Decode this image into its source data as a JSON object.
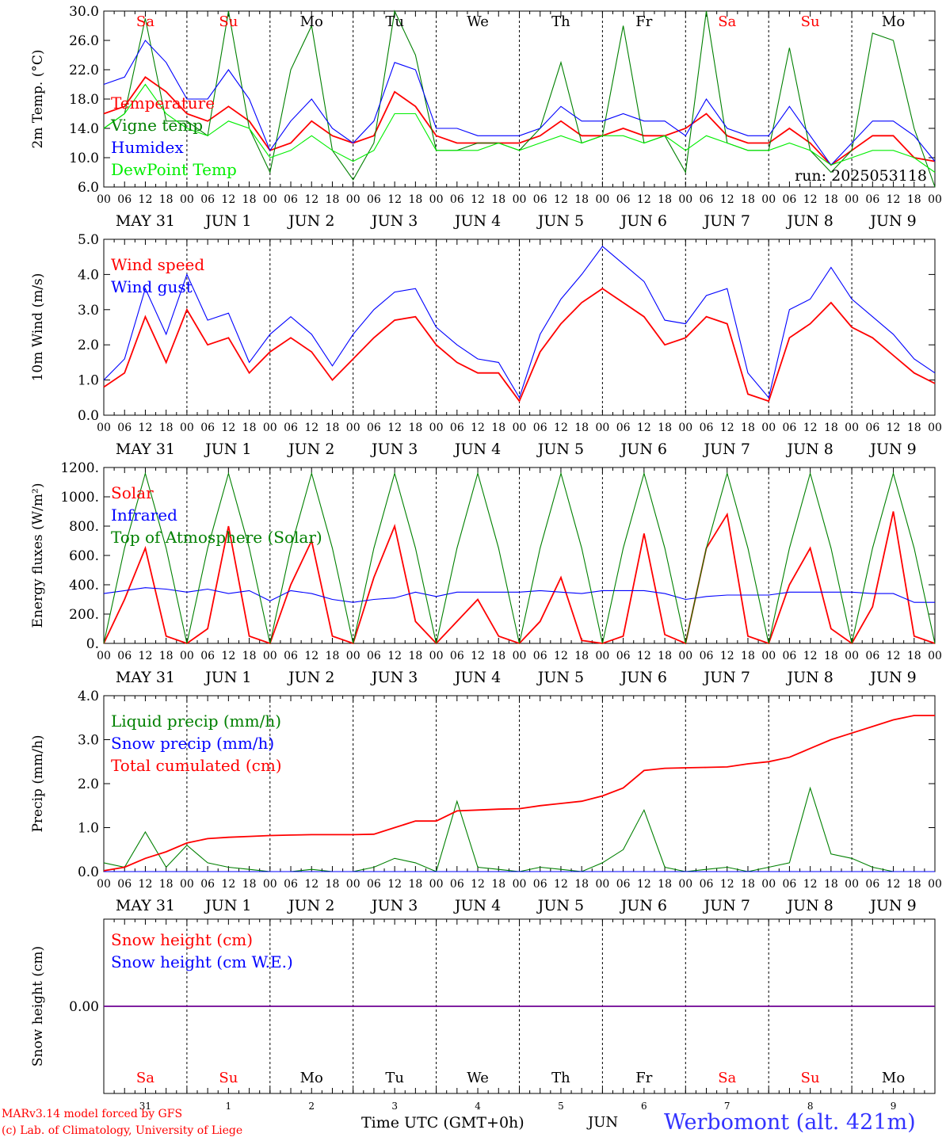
{
  "run_label": "run: 2025053118",
  "footer": {
    "credit_line1": "MARv3.14 model forced by GFS",
    "credit_line2": "(c) Lab. of Climatology, University of Liege",
    "time_axis_label": "Time UTC (GMT+0h)",
    "month_label": "JUN",
    "station": "Werbomont (alt. 421m)"
  },
  "x_axis": {
    "hour_ticks": [
      "00",
      "06",
      "12",
      "18"
    ],
    "day_labels": [
      "MAY 31",
      "JUN  1",
      "JUN  2",
      "JUN  3",
      "JUN  4",
      "JUN  5",
      "JUN  6",
      "JUN  7",
      "JUN  8",
      "JUN  9"
    ],
    "weekdays": [
      "Sa",
      "Su",
      "Mo",
      "Tu",
      "We",
      "Th",
      "Fr",
      "Sa",
      "Su",
      "Mo"
    ],
    "weekend_flags": [
      true,
      true,
      false,
      false,
      false,
      false,
      false,
      true,
      true,
      false
    ],
    "day_numbers": [
      "31",
      "1",
      "2",
      "3",
      "4",
      "5",
      "6",
      "7",
      "8",
      "9"
    ],
    "total_hours": 240
  },
  "colors": {
    "red": "#ff0000",
    "blue": "#0000ff",
    "green": "#008000",
    "lightgreen": "#00ee00",
    "weekend": "#ff0000",
    "weekday": "#000000"
  },
  "chart_data": [
    {
      "type": "line",
      "ylabel": "2m Temp. (°C)",
      "ylim": [
        6,
        30
      ],
      "yticks": [
        "6.0",
        "10.0",
        "14.0",
        "18.0",
        "22.0",
        "26.0",
        "30.0"
      ],
      "yticks_values": [
        6,
        10,
        14,
        18,
        22,
        26,
        30
      ],
      "x": [
        0,
        6,
        12,
        18,
        24,
        30,
        36,
        42,
        48,
        54,
        60,
        66,
        72,
        78,
        84,
        90,
        96,
        102,
        108,
        114,
        120,
        126,
        132,
        138,
        144,
        150,
        156,
        162,
        168,
        174,
        180,
        186,
        192,
        198,
        204,
        210,
        216,
        222,
        228,
        234,
        240
      ],
      "series": [
        {
          "name": "Temperature",
          "color": "red",
          "values": [
            16,
            17,
            21,
            19,
            16,
            15,
            17,
            15,
            11,
            12,
            15,
            13,
            12,
            13,
            19,
            17,
            13,
            12,
            12,
            12,
            12,
            13,
            15,
            13,
            13,
            14,
            13,
            13,
            14,
            16,
            13,
            12,
            12,
            14,
            12,
            9,
            11,
            13,
            13,
            10,
            9.5
          ]
        },
        {
          "name": "Vigne temp",
          "color": "green",
          "values": [
            14,
            16,
            29,
            15,
            15,
            13,
            30,
            14,
            8,
            22,
            28,
            11,
            7,
            12,
            30,
            24,
            11,
            11,
            12,
            12,
            11,
            14,
            23,
            12,
            13,
            28,
            12,
            13,
            8,
            30,
            12,
            11,
            11,
            25,
            11,
            8,
            11,
            27,
            26,
            14,
            6
          ]
        },
        {
          "name": "Humidex",
          "color": "blue",
          "values": [
            20,
            21,
            26,
            23,
            18,
            18,
            22,
            18,
            11,
            15,
            18,
            14,
            12,
            15,
            23,
            22,
            14,
            14,
            13,
            13,
            13,
            14,
            17,
            15,
            15,
            16,
            15,
            15,
            13,
            18,
            14,
            13,
            13,
            17,
            13,
            9,
            12,
            15,
            15,
            13,
            9.5
          ]
        },
        {
          "name": "DewPoint Temp",
          "color": "lightgreen",
          "values": [
            14,
            16,
            20,
            16,
            14,
            13,
            15,
            14,
            10,
            11,
            13,
            11,
            9.5,
            11,
            16,
            16,
            11,
            11,
            11,
            12,
            11,
            12,
            13,
            12,
            13,
            13,
            12,
            13,
            11,
            13,
            12,
            11,
            11,
            12,
            11,
            9,
            10,
            11,
            11,
            10,
            8
          ]
        }
      ]
    },
    {
      "type": "line",
      "ylabel": "10m Wind (m/s)",
      "ylim": [
        0,
        5
      ],
      "yticks": [
        "0.0",
        "1.0",
        "2.0",
        "3.0",
        "4.0",
        "5.0"
      ],
      "yticks_values": [
        0,
        1,
        2,
        3,
        4,
        5
      ],
      "x": [
        0,
        6,
        12,
        18,
        24,
        30,
        36,
        42,
        48,
        54,
        60,
        66,
        72,
        78,
        84,
        90,
        96,
        102,
        108,
        114,
        120,
        126,
        132,
        138,
        144,
        150,
        156,
        162,
        168,
        174,
        180,
        186,
        192,
        198,
        204,
        210,
        216,
        222,
        228,
        234,
        240
      ],
      "series": [
        {
          "name": "Wind speed",
          "color": "red",
          "values": [
            0.8,
            1.2,
            2.8,
            1.5,
            3.0,
            2.0,
            2.2,
            1.2,
            1.8,
            2.2,
            1.8,
            1.0,
            1.6,
            2.2,
            2.7,
            2.8,
            2.0,
            1.5,
            1.2,
            1.2,
            0.4,
            1.8,
            2.6,
            3.2,
            3.6,
            3.2,
            2.8,
            2.0,
            2.2,
            2.8,
            2.6,
            0.6,
            0.4,
            2.2,
            2.6,
            3.2,
            2.5,
            2.2,
            1.7,
            1.2,
            0.9
          ]
        },
        {
          "name": "Wind gust",
          "color": "blue",
          "values": [
            1.0,
            1.6,
            3.6,
            2.3,
            4.0,
            2.7,
            2.9,
            1.5,
            2.3,
            2.8,
            2.3,
            1.4,
            2.3,
            3.0,
            3.5,
            3.6,
            2.5,
            2.0,
            1.6,
            1.5,
            0.5,
            2.3,
            3.3,
            4.0,
            4.8,
            4.3,
            3.8,
            2.7,
            2.6,
            3.4,
            3.6,
            1.2,
            0.5,
            3.0,
            3.3,
            4.2,
            3.3,
            2.8,
            2.3,
            1.6,
            1.2
          ]
        }
      ]
    },
    {
      "type": "line",
      "ylabel": "Energy fluxes (W/m²)",
      "ylim": [
        0,
        1200
      ],
      "yticks": [
        "0.",
        "200.",
        "400.",
        "600.",
        "800.",
        "1000.",
        "1200."
      ],
      "yticks_values": [
        0,
        200,
        400,
        600,
        800,
        1000,
        1200
      ],
      "x": [
        0,
        6,
        12,
        18,
        24,
        30,
        36,
        42,
        48,
        54,
        60,
        66,
        72,
        78,
        84,
        90,
        96,
        102,
        108,
        114,
        120,
        126,
        132,
        138,
        144,
        150,
        156,
        162,
        168,
        174,
        180,
        186,
        192,
        198,
        204,
        210,
        216,
        222,
        228,
        234,
        240
      ],
      "series": [
        {
          "name": "Solar",
          "color": "red",
          "values": [
            0,
            300,
            650,
            50,
            0,
            100,
            800,
            50,
            0,
            400,
            700,
            50,
            0,
            450,
            800,
            150,
            0,
            150,
            300,
            50,
            0,
            150,
            450,
            20,
            0,
            50,
            750,
            60,
            0,
            650,
            880,
            50,
            0,
            400,
            650,
            100,
            0,
            250,
            900,
            50,
            0
          ]
        },
        {
          "name": "Infrared",
          "color": "blue",
          "values": [
            340,
            360,
            380,
            370,
            350,
            370,
            340,
            360,
            290,
            360,
            340,
            300,
            280,
            300,
            310,
            350,
            320,
            350,
            350,
            350,
            350,
            360,
            350,
            340,
            360,
            360,
            360,
            340,
            300,
            320,
            330,
            330,
            330,
            350,
            350,
            350,
            350,
            340,
            340,
            280,
            280
          ]
        },
        {
          "name": "Top of Atmosphere (Solar)",
          "color": "green",
          "values": [
            0,
            650,
            1160,
            650,
            0,
            650,
            1160,
            650,
            0,
            650,
            1160,
            650,
            0,
            650,
            1160,
            650,
            0,
            650,
            1160,
            650,
            0,
            650,
            1160,
            650,
            0,
            650,
            1160,
            650,
            0,
            650,
            1160,
            650,
            0,
            650,
            1160,
            650,
            0,
            650,
            1160,
            650,
            0
          ]
        }
      ]
    },
    {
      "type": "line",
      "ylabel": "Precip (mm/h)",
      "ylim": [
        0,
        4
      ],
      "yticks": [
        "0.0",
        "1.0",
        "2.0",
        "3.0",
        "4.0"
      ],
      "yticks_values": [
        0,
        1,
        2,
        3,
        4
      ],
      "x": [
        0,
        6,
        12,
        18,
        24,
        30,
        36,
        42,
        48,
        54,
        60,
        66,
        72,
        78,
        84,
        90,
        96,
        102,
        108,
        114,
        120,
        126,
        132,
        138,
        144,
        150,
        156,
        162,
        168,
        174,
        180,
        186,
        192,
        198,
        204,
        210,
        216,
        222,
        228,
        234,
        240
      ],
      "series": [
        {
          "name": "Liquid precip (mm/h)",
          "color": "green",
          "values": [
            0.2,
            0.1,
            0.9,
            0.1,
            0.6,
            0.2,
            0.1,
            0.05,
            0.0,
            0.0,
            0.05,
            0.0,
            0.0,
            0.1,
            0.3,
            0.2,
            0.0,
            1.6,
            0.1,
            0.05,
            0.0,
            0.1,
            0.05,
            0.0,
            0.2,
            0.5,
            1.4,
            0.1,
            0.0,
            0.05,
            0.1,
            0.0,
            0.1,
            0.2,
            1.9,
            0.4,
            0.3,
            0.1,
            0.0,
            0.0,
            0.0
          ]
        },
        {
          "name": "Snow precip (mm/h)",
          "color": "blue",
          "values": [
            0,
            0,
            0,
            0,
            0,
            0,
            0,
            0,
            0,
            0,
            0,
            0,
            0,
            0,
            0,
            0,
            0,
            0,
            0,
            0,
            0,
            0,
            0,
            0,
            0,
            0,
            0,
            0,
            0,
            0,
            0,
            0,
            0,
            0,
            0,
            0,
            0,
            0,
            0,
            0,
            0
          ]
        },
        {
          "name": "Total cumulated (cm)",
          "color": "red",
          "values": [
            0.02,
            0.1,
            0.3,
            0.45,
            0.65,
            0.75,
            0.78,
            0.8,
            0.82,
            0.83,
            0.84,
            0.84,
            0.84,
            0.85,
            1.0,
            1.15,
            1.15,
            1.38,
            1.4,
            1.42,
            1.43,
            1.5,
            1.55,
            1.6,
            1.72,
            1.9,
            2.3,
            2.35,
            2.36,
            2.37,
            2.38,
            2.45,
            2.5,
            2.6,
            2.8,
            3.0,
            3.15,
            3.3,
            3.45,
            3.55,
            3.55
          ]
        }
      ]
    },
    {
      "type": "line",
      "ylabel": "Snow height (cm)",
      "ylim": [
        -1,
        1
      ],
      "yticks": [
        "0.00"
      ],
      "yticks_values": [
        0
      ],
      "x": [
        0,
        240
      ],
      "series": [
        {
          "name": "Snow height (cm)",
          "color": "red",
          "values": [
            0,
            0
          ]
        },
        {
          "name": "Snow height (cm W.E.)",
          "color": "blue",
          "values": [
            0,
            0
          ]
        }
      ]
    }
  ]
}
